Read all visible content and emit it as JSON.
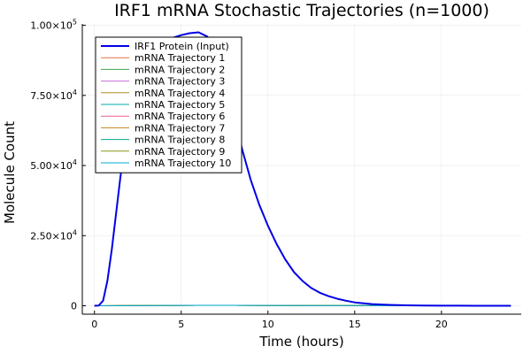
{
  "chart_data": {
    "type": "line",
    "title": "IRF1 mRNA Stochastic Trajectories (n=1000)",
    "xlabel": "Time (hours)",
    "ylabel": "Molecule Count",
    "xlim": [
      -0.7,
      24.6
    ],
    "ylim": [
      -3000,
      100500
    ],
    "xticks": [
      0,
      5,
      10,
      15,
      20
    ],
    "xtick_labels": [
      "0",
      "5",
      "10",
      "15",
      "20"
    ],
    "yticks": [
      0,
      25000,
      50000,
      75000,
      100000
    ],
    "ytick_labels": [
      {
        "mantissa": "0",
        "exp": ""
      },
      {
        "mantissa": "2.50×10",
        "exp": "4"
      },
      {
        "mantissa": "5.00×10",
        "exp": "4"
      },
      {
        "mantissa": "7.50×10",
        "exp": "4"
      },
      {
        "mantissa": "1.00×10",
        "exp": "5"
      }
    ],
    "grid": true,
    "legend_position": "top-left",
    "series": [
      {
        "name": "IRF1 Protein (Input)",
        "color": "#0000e6",
        "width": 2,
        "x": [
          0,
          0.25,
          0.5,
          0.75,
          1,
          1.25,
          1.5,
          1.75,
          2,
          2.5,
          3,
          3.5,
          4,
          4.5,
          5,
          5.5,
          6,
          6.5,
          7,
          7.5,
          8,
          8.5,
          9,
          9.5,
          10,
          10.5,
          11,
          11.5,
          12,
          12.5,
          13,
          13.5,
          14,
          14.5,
          15,
          16,
          17,
          18,
          19,
          20,
          21,
          22,
          23,
          24
        ],
        "y": [
          0,
          100,
          1800,
          9000,
          20000,
          33000,
          46000,
          57000,
          66000,
          78000,
          86000,
          91000,
          94000,
          95500,
          96500,
          97200,
          97500,
          96000,
          91000,
          82000,
          70000,
          56000,
          45000,
          36000,
          28500,
          22000,
          16500,
          12000,
          8800,
          6300,
          4600,
          3400,
          2500,
          1800,
          1200,
          600,
          300,
          150,
          70,
          30,
          15,
          8,
          4,
          2
        ]
      },
      {
        "name": "mRNA Trajectory 1",
        "color": "#e26f46",
        "width": 1,
        "x": [
          0,
          2,
          4,
          6,
          8,
          10,
          12,
          14,
          16,
          18,
          20,
          22,
          24
        ],
        "y": [
          0,
          40,
          120,
          160,
          140,
          110,
          80,
          60,
          40,
          25,
          15,
          10,
          5
        ]
      },
      {
        "name": "mRNA Trajectory 2",
        "color": "#3da44d",
        "width": 1,
        "x": [
          0,
          2,
          4,
          6,
          8,
          10,
          12,
          14,
          16,
          18,
          20,
          22,
          24
        ],
        "y": [
          0,
          50,
          130,
          170,
          150,
          115,
          85,
          60,
          40,
          25,
          15,
          10,
          5
        ]
      },
      {
        "name": "mRNA Trajectory 3",
        "color": "#c271d2",
        "width": 1,
        "x": [
          0,
          2,
          4,
          6,
          8,
          10,
          12,
          14,
          16,
          18,
          20,
          22,
          24
        ],
        "y": [
          0,
          45,
          125,
          165,
          145,
          112,
          82,
          58,
          38,
          24,
          14,
          9,
          4
        ]
      },
      {
        "name": "mRNA Trajectory 4",
        "color": "#ac8d18",
        "width": 1,
        "x": [
          0,
          2,
          4,
          6,
          8,
          10,
          12,
          14,
          16,
          18,
          20,
          22,
          24
        ],
        "y": [
          0,
          42,
          118,
          158,
          142,
          108,
          79,
          57,
          37,
          23,
          14,
          9,
          4
        ]
      },
      {
        "name": "mRNA Trajectory 5",
        "color": "#00a9ad",
        "width": 1,
        "x": [
          0,
          2,
          4,
          6,
          8,
          10,
          12,
          14,
          16,
          18,
          20,
          22,
          24
        ],
        "y": [
          0,
          48,
          128,
          168,
          148,
          114,
          84,
          61,
          41,
          26,
          16,
          10,
          5
        ]
      },
      {
        "name": "mRNA Trajectory 6",
        "color": "#ed5e93",
        "width": 1,
        "x": [
          0,
          2,
          4,
          6,
          8,
          10,
          12,
          14,
          16,
          18,
          20,
          22,
          24
        ],
        "y": [
          0,
          44,
          122,
          162,
          143,
          111,
          81,
          59,
          39,
          24,
          15,
          9,
          5
        ]
      },
      {
        "name": "mRNA Trajectory 7",
        "color": "#c68225",
        "width": 1,
        "x": [
          0,
          2,
          4,
          6,
          8,
          10,
          12,
          14,
          16,
          18,
          20,
          22,
          24
        ],
        "y": [
          0,
          46,
          126,
          166,
          147,
          113,
          83,
          60,
          40,
          25,
          15,
          10,
          5
        ]
      },
      {
        "name": "mRNA Trajectory 8",
        "color": "#00a98d",
        "width": 1,
        "x": [
          0,
          2,
          4,
          6,
          8,
          10,
          12,
          14,
          16,
          18,
          20,
          22,
          24
        ],
        "y": [
          0,
          41,
          119,
          159,
          141,
          109,
          80,
          58,
          38,
          24,
          14,
          9,
          4
        ]
      },
      {
        "name": "mRNA Trajectory 9",
        "color": "#8e971e",
        "width": 1,
        "x": [
          0,
          2,
          4,
          6,
          8,
          10,
          12,
          14,
          16,
          18,
          20,
          22,
          24
        ],
        "y": [
          0,
          47,
          127,
          167,
          146,
          112,
          82,
          59,
          39,
          25,
          15,
          10,
          5
        ]
      },
      {
        "name": "mRNA Trajectory 10",
        "color": "#00a8cb",
        "width": 1,
        "x": [
          0,
          2,
          4,
          6,
          8,
          10,
          12,
          14,
          16,
          18,
          20,
          22,
          24
        ],
        "y": [
          0,
          43,
          121,
          161,
          144,
          110,
          81,
          58,
          38,
          24,
          14,
          9,
          4
        ]
      }
    ]
  }
}
